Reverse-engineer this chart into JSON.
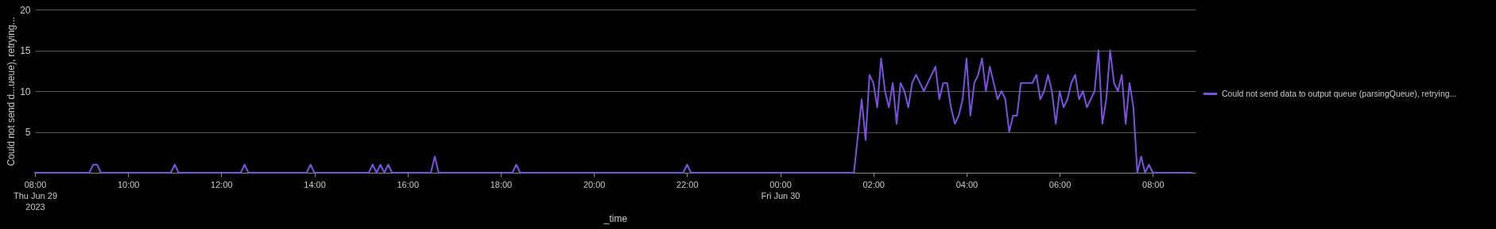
{
  "chart_data": {
    "type": "line",
    "xlabel": "_time",
    "ylabel": "Could not send d...ueue), retrying...",
    "x": [
      "2023-06-29T08:00",
      "2023-06-29T09:10",
      "2023-06-29T09:15",
      "2023-06-29T09:20",
      "2023-06-29T09:25",
      "2023-06-29T10:55",
      "2023-06-29T11:00",
      "2023-06-29T11:05",
      "2023-06-29T12:25",
      "2023-06-29T12:30",
      "2023-06-29T12:35",
      "2023-06-29T13:50",
      "2023-06-29T13:55",
      "2023-06-29T14:00",
      "2023-06-29T15:10",
      "2023-06-29T15:15",
      "2023-06-29T15:20",
      "2023-06-29T15:25",
      "2023-06-29T15:30",
      "2023-06-29T15:35",
      "2023-06-29T15:40",
      "2023-06-29T16:30",
      "2023-06-29T16:35",
      "2023-06-29T16:40",
      "2023-06-29T18:15",
      "2023-06-29T18:20",
      "2023-06-29T18:25",
      "2023-06-29T21:55",
      "2023-06-29T22:00",
      "2023-06-29T22:05",
      "2023-06-30T01:35",
      "2023-06-30T01:45",
      "2023-06-30T01:50",
      "2023-06-30T01:55",
      "2023-06-30T02:00",
      "2023-06-30T02:05",
      "2023-06-30T02:10",
      "2023-06-30T02:15",
      "2023-06-30T02:20",
      "2023-06-30T02:25",
      "2023-06-30T02:30",
      "2023-06-30T02:35",
      "2023-06-30T02:40",
      "2023-06-30T02:45",
      "2023-06-30T02:50",
      "2023-06-30T02:55",
      "2023-06-30T03:05",
      "2023-06-30T03:20",
      "2023-06-30T03:25",
      "2023-06-30T03:30",
      "2023-06-30T03:35",
      "2023-06-30T03:40",
      "2023-06-30T03:45",
      "2023-06-30T03:50",
      "2023-06-30T03:55",
      "2023-06-30T04:00",
      "2023-06-30T04:05",
      "2023-06-30T04:10",
      "2023-06-30T04:15",
      "2023-06-30T04:20",
      "2023-06-30T04:25",
      "2023-06-30T04:30",
      "2023-06-30T04:35",
      "2023-06-30T04:40",
      "2023-06-30T04:45",
      "2023-06-30T04:50",
      "2023-06-30T04:55",
      "2023-06-30T05:00",
      "2023-06-30T05:05",
      "2023-06-30T05:10",
      "2023-06-30T05:25",
      "2023-06-30T05:30",
      "2023-06-30T05:35",
      "2023-06-30T05:40",
      "2023-06-30T05:45",
      "2023-06-30T05:50",
      "2023-06-30T05:55",
      "2023-06-30T06:00",
      "2023-06-30T06:05",
      "2023-06-30T06:10",
      "2023-06-30T06:15",
      "2023-06-30T06:20",
      "2023-06-30T06:25",
      "2023-06-30T06:30",
      "2023-06-30T06:35",
      "2023-06-30T06:40",
      "2023-06-30T06:45",
      "2023-06-30T06:50",
      "2023-06-30T06:55",
      "2023-06-30T07:00",
      "2023-06-30T07:05",
      "2023-06-30T07:10",
      "2023-06-30T07:15",
      "2023-06-30T07:20",
      "2023-06-30T07:25",
      "2023-06-30T07:30",
      "2023-06-30T07:35",
      "2023-06-30T07:40",
      "2023-06-30T07:45",
      "2023-06-30T07:50",
      "2023-06-30T07:55",
      "2023-06-30T08:00",
      "2023-06-30T08:50"
    ],
    "series": [
      {
        "name": "Could not send data to output queue (parsingQueue), retrying...",
        "color": "#7b52e0",
        "values": [
          0,
          0,
          1,
          1,
          0,
          0,
          1,
          0,
          0,
          1,
          0,
          0,
          1,
          0,
          0,
          1,
          0,
          1,
          0,
          1,
          0,
          0,
          2,
          0,
          0,
          1,
          0,
          0,
          1,
          0,
          0,
          9,
          4,
          12,
          11,
          8,
          14,
          10,
          8,
          11,
          6,
          11,
          10,
          8,
          11,
          12,
          10,
          13,
          9,
          11,
          11,
          8,
          6,
          7,
          9,
          14,
          7,
          11,
          12,
          14,
          10,
          13,
          11,
          9,
          10,
          9,
          5,
          7,
          7,
          11,
          11,
          12,
          9,
          10,
          12,
          10,
          6,
          10,
          8,
          9,
          11,
          12,
          9,
          10,
          8,
          9,
          10,
          15,
          6,
          9,
          15,
          11,
          10,
          12,
          6,
          11,
          8,
          0,
          2,
          0,
          1,
          0,
          0
        ]
      }
    ],
    "xlim": [
      "2023-06-29T08:00",
      "2023-06-30T08:55"
    ],
    "xticks": [
      {
        "value": "2023-06-29T08:00",
        "label": "08:00\nThu Jun 29\n2023"
      },
      {
        "value": "2023-06-29T10:00",
        "label": "10:00"
      },
      {
        "value": "2023-06-29T12:00",
        "label": "12:00"
      },
      {
        "value": "2023-06-29T14:00",
        "label": "14:00"
      },
      {
        "value": "2023-06-29T16:00",
        "label": "16:00"
      },
      {
        "value": "2023-06-29T18:00",
        "label": "18:00"
      },
      {
        "value": "2023-06-29T20:00",
        "label": "20:00"
      },
      {
        "value": "2023-06-29T22:00",
        "label": "22:00"
      },
      {
        "value": "2023-06-30T00:00",
        "label": "00:00\nFri Jun 30"
      },
      {
        "value": "2023-06-30T02:00",
        "label": "02:00"
      },
      {
        "value": "2023-06-30T04:00",
        "label": "04:00"
      },
      {
        "value": "2023-06-30T06:00",
        "label": "06:00"
      },
      {
        "value": "2023-06-30T08:00",
        "label": "08:00"
      }
    ],
    "ylim": [
      0,
      20
    ],
    "yticks": [
      5,
      10,
      15,
      20
    ],
    "grid": "y",
    "legend": "right",
    "marker": "none",
    "line_style": "solid"
  }
}
